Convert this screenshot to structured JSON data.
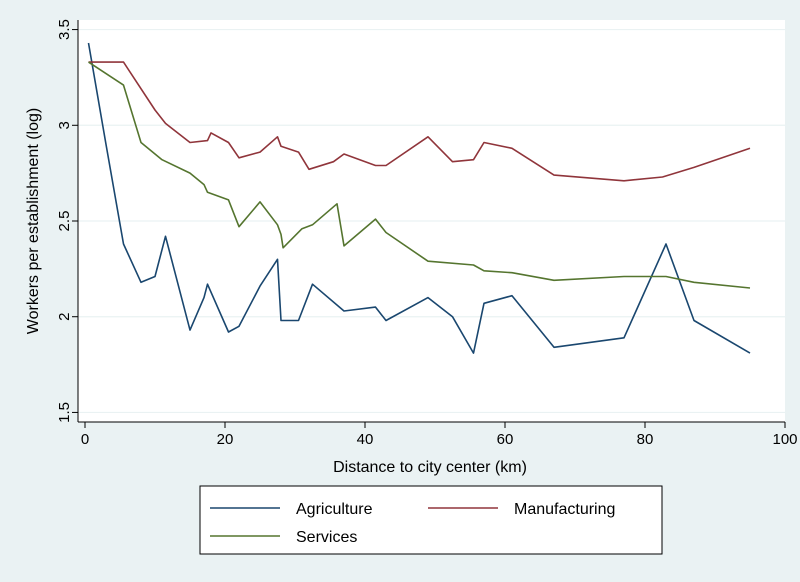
{
  "chart_data": {
    "type": "line",
    "title": "",
    "xlabel": "Distance to city center (km)",
    "ylabel": "Workers per establishment (log)",
    "xlim": [
      -1,
      100
    ],
    "ylim": [
      1.45,
      3.55
    ],
    "x_ticks": [
      0,
      20,
      40,
      60,
      80,
      100
    ],
    "y_ticks": [
      1.5,
      2,
      2.5,
      3,
      3.5
    ],
    "x_tick_labels": [
      "0",
      "20",
      "40",
      "60",
      "80",
      "100"
    ],
    "y_tick_labels": [
      "1.5",
      "2",
      "2.5",
      "3",
      "3.5"
    ],
    "grid": "horizontal",
    "legend_position": "bottom",
    "series": [
      {
        "name": "Agriculture",
        "color": "#1a476f",
        "points": [
          [
            0.5,
            3.43
          ],
          [
            3,
            2.9
          ],
          [
            5.5,
            2.38
          ],
          [
            8,
            2.18
          ],
          [
            10,
            2.21
          ],
          [
            11.5,
            2.42
          ],
          [
            15,
            1.93
          ],
          [
            17,
            2.1
          ],
          [
            17.5,
            2.17
          ],
          [
            20.5,
            1.92
          ],
          [
            22,
            1.95
          ],
          [
            25,
            2.16
          ],
          [
            27.5,
            2.3
          ],
          [
            28,
            1.98
          ],
          [
            30.5,
            1.98
          ],
          [
            32.5,
            2.17
          ],
          [
            37,
            2.03
          ],
          [
            41.5,
            2.05
          ],
          [
            43,
            1.98
          ],
          [
            49,
            2.1
          ],
          [
            52.5,
            2.0
          ],
          [
            55.5,
            1.81
          ],
          [
            57,
            2.07
          ],
          [
            61,
            2.11
          ],
          [
            67,
            1.84
          ],
          [
            77,
            1.89
          ],
          [
            83,
            2.38
          ],
          [
            87,
            1.98
          ],
          [
            95,
            1.81
          ]
        ]
      },
      {
        "name": "Manufacturing",
        "color": "#90353b",
        "points": [
          [
            0.5,
            3.33
          ],
          [
            5.5,
            3.33
          ],
          [
            10,
            3.08
          ],
          [
            11.5,
            3.01
          ],
          [
            15,
            2.91
          ],
          [
            17.5,
            2.92
          ],
          [
            18,
            2.96
          ],
          [
            20.5,
            2.91
          ],
          [
            22,
            2.83
          ],
          [
            25,
            2.86
          ],
          [
            27.5,
            2.94
          ],
          [
            28,
            2.89
          ],
          [
            30.5,
            2.86
          ],
          [
            32,
            2.77
          ],
          [
            35.5,
            2.81
          ],
          [
            37,
            2.85
          ],
          [
            41.5,
            2.79
          ],
          [
            43,
            2.79
          ],
          [
            49,
            2.94
          ],
          [
            52.5,
            2.81
          ],
          [
            55.5,
            2.82
          ],
          [
            57,
            2.91
          ],
          [
            61,
            2.88
          ],
          [
            67,
            2.74
          ],
          [
            77,
            2.71
          ],
          [
            82.5,
            2.73
          ],
          [
            87,
            2.78
          ],
          [
            95,
            2.88
          ]
        ]
      },
      {
        "name": "Services",
        "color": "#55752f",
        "points": [
          [
            0.5,
            3.33
          ],
          [
            5.5,
            3.21
          ],
          [
            8,
            2.91
          ],
          [
            11,
            2.82
          ],
          [
            15,
            2.75
          ],
          [
            17,
            2.69
          ],
          [
            17.5,
            2.65
          ],
          [
            20.5,
            2.61
          ],
          [
            22,
            2.47
          ],
          [
            25,
            2.6
          ],
          [
            27.5,
            2.48
          ],
          [
            28,
            2.43
          ],
          [
            28.3,
            2.36
          ],
          [
            31,
            2.46
          ],
          [
            32.5,
            2.48
          ],
          [
            36,
            2.59
          ],
          [
            37,
            2.37
          ],
          [
            41.5,
            2.51
          ],
          [
            43,
            2.44
          ],
          [
            49,
            2.29
          ],
          [
            55.5,
            2.27
          ],
          [
            57,
            2.24
          ],
          [
            61,
            2.23
          ],
          [
            67,
            2.19
          ],
          [
            77,
            2.21
          ],
          [
            83,
            2.21
          ],
          [
            87,
            2.18
          ],
          [
            95,
            2.15
          ]
        ]
      }
    ]
  }
}
